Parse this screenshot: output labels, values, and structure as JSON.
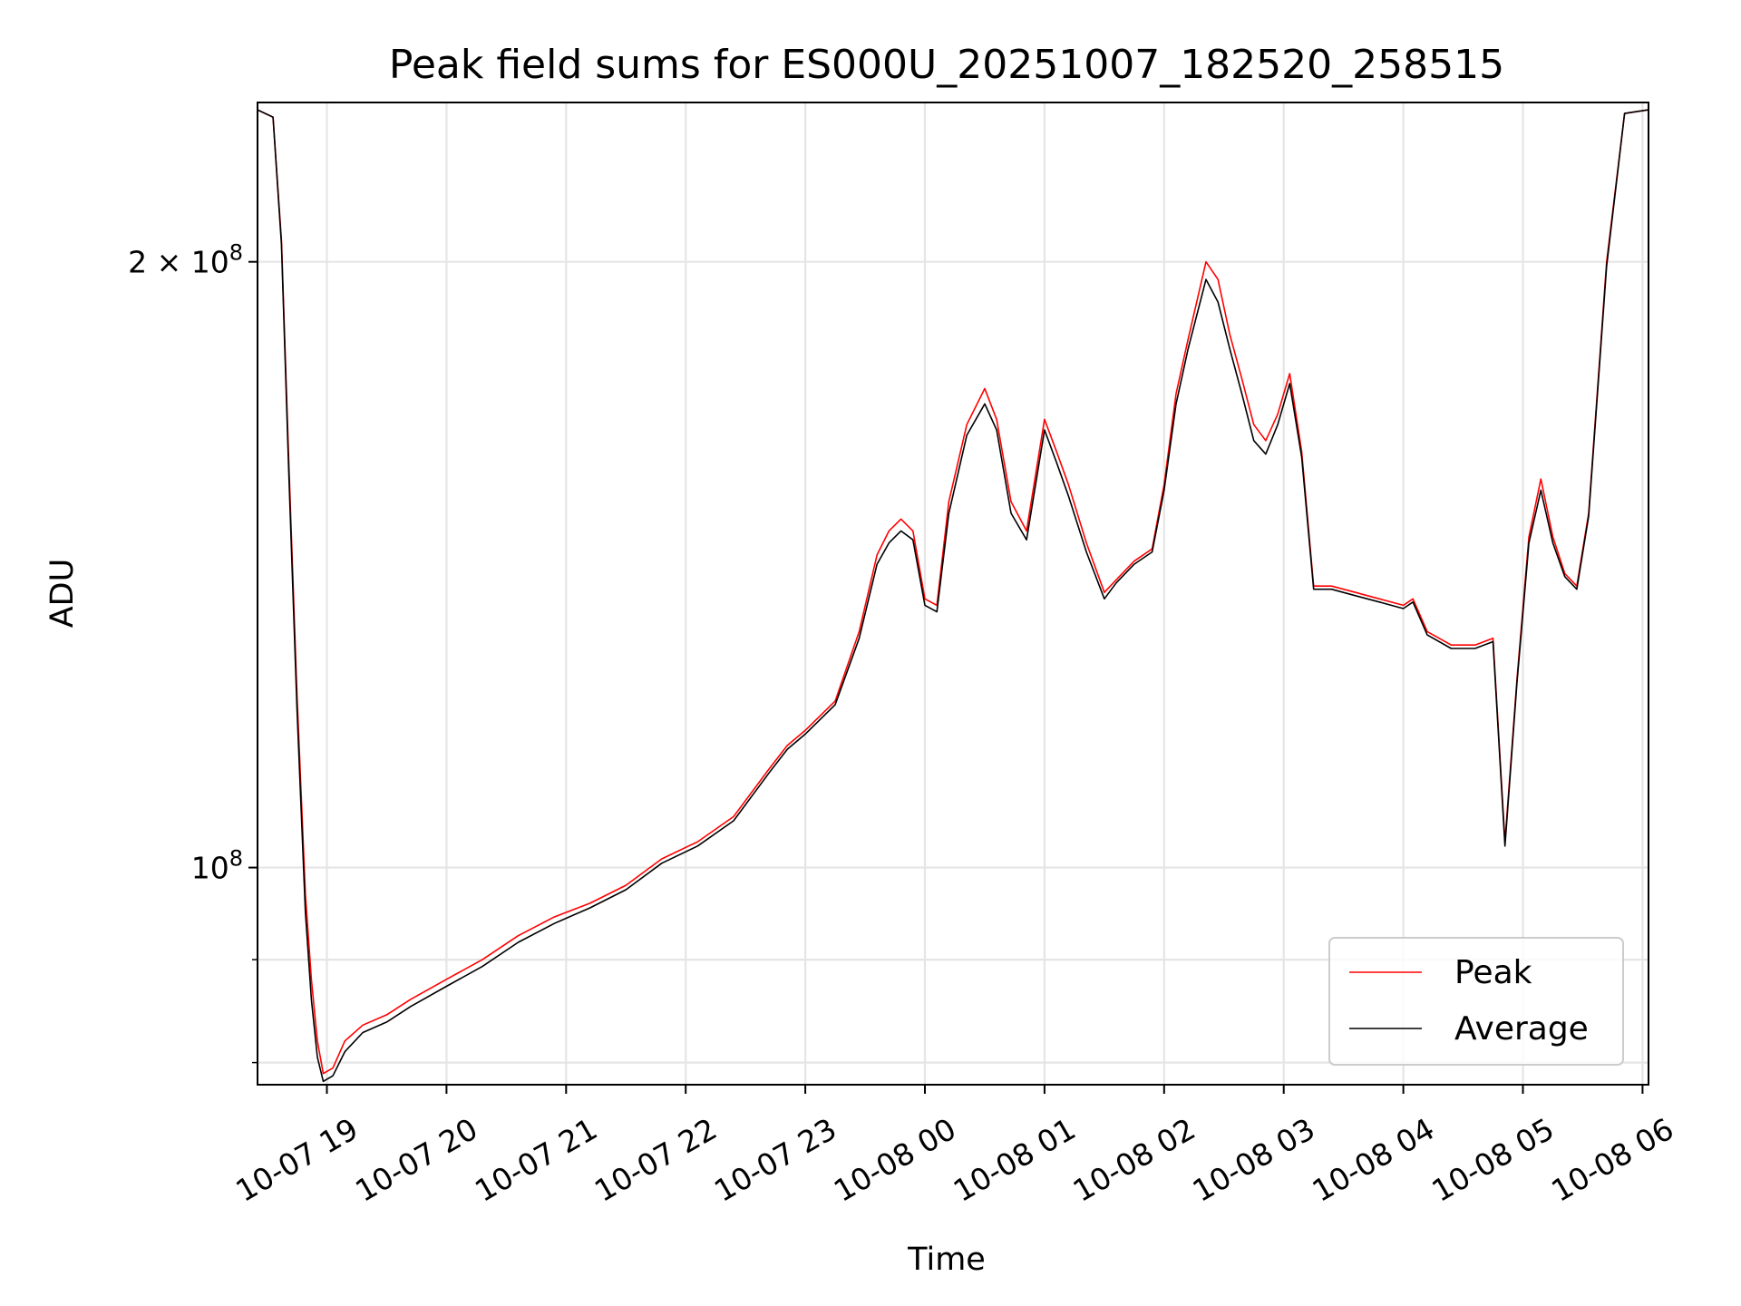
{
  "chart_data": {
    "type": "line",
    "title": "Peak field sums for ES000U_20251007_182520_258515",
    "xlabel": "Time",
    "ylabel": "ADU",
    "yscale": "log",
    "xlim_hours": [
      18.42,
      30.05
    ],
    "ylim": [
      78000000,
      240000000
    ],
    "x_ticks": [
      {
        "h": 19,
        "label": "10-07 19"
      },
      {
        "h": 20,
        "label": "10-07 20"
      },
      {
        "h": 21,
        "label": "10-07 21"
      },
      {
        "h": 22,
        "label": "10-07 22"
      },
      {
        "h": 23,
        "label": "10-07 23"
      },
      {
        "h": 24,
        "label": "10-08 00"
      },
      {
        "h": 25,
        "label": "10-08 01"
      },
      {
        "h": 26,
        "label": "10-08 02"
      },
      {
        "h": 27,
        "label": "10-08 03"
      },
      {
        "h": 28,
        "label": "10-08 04"
      },
      {
        "h": 29,
        "label": "10-08 05"
      },
      {
        "h": 30,
        "label": "10-08 06"
      }
    ],
    "y_major_ticks": [
      {
        "v": 100000000,
        "base": "10",
        "exp": "8"
      },
      {
        "v": 200000000,
        "base": "2 × 10",
        "exp": "8"
      }
    ],
    "y_minor_ticks": [
      80000000,
      90000000
    ],
    "grid": true,
    "legend_position": "lower-right",
    "series": [
      {
        "name": "Peak",
        "color": "#ff0000",
        "x": [
          18.42,
          18.55,
          18.62,
          18.68,
          18.75,
          18.82,
          18.87,
          18.92,
          18.97,
          19.05,
          19.15,
          19.3,
          19.5,
          19.7,
          20.0,
          20.3,
          20.6,
          20.9,
          21.2,
          21.5,
          21.8,
          22.1,
          22.4,
          22.7,
          22.85,
          23.0,
          23.25,
          23.45,
          23.6,
          23.7,
          23.8,
          23.9,
          24.0,
          24.1,
          24.2,
          24.35,
          24.5,
          24.6,
          24.72,
          24.85,
          25.0,
          25.1,
          25.2,
          25.35,
          25.5,
          25.6,
          25.75,
          25.9,
          26.0,
          26.1,
          26.2,
          26.35,
          26.45,
          26.55,
          26.65,
          26.75,
          26.85,
          26.95,
          27.05,
          27.15,
          27.25,
          27.4,
          27.6,
          27.8,
          28.0,
          28.08,
          28.2,
          28.4,
          28.6,
          28.75,
          28.85,
          28.95,
          29.05,
          29.15,
          29.25,
          29.35,
          29.45,
          29.55,
          29.7,
          29.85,
          30.05
        ],
        "values": [
          238000000,
          236000000,
          205000000,
          160000000,
          122000000,
          97000000,
          88000000,
          82000000,
          79000000,
          79500000,
          82000000,
          83500000,
          84500000,
          86000000,
          88000000,
          90000000,
          92500000,
          94500000,
          96000000,
          98000000,
          101000000,
          103000000,
          106000000,
          112000000,
          115000000,
          117000000,
          121000000,
          131000000,
          143000000,
          147000000,
          149000000,
          147000000,
          136000000,
          135000000,
          152000000,
          166000000,
          173000000,
          167000000,
          152000000,
          147000000,
          167000000,
          161000000,
          155000000,
          145000000,
          137000000,
          139000000,
          142000000,
          144000000,
          155000000,
          172000000,
          183000000,
          200000000,
          196000000,
          184000000,
          175000000,
          166000000,
          163000000,
          168000000,
          176000000,
          161000000,
          138000000,
          138000000,
          137000000,
          136000000,
          135000000,
          136000000,
          131000000,
          129000000,
          129000000,
          130000000,
          103000000,
          124000000,
          146000000,
          156000000,
          146000000,
          140000000,
          138000000,
          150000000,
          200000000,
          237000000,
          238000000
        ]
      },
      {
        "name": "Average",
        "color": "#000000",
        "x": [
          18.42,
          18.55,
          18.62,
          18.68,
          18.75,
          18.82,
          18.87,
          18.92,
          18.97,
          19.05,
          19.15,
          19.3,
          19.5,
          19.7,
          20.0,
          20.3,
          20.6,
          20.9,
          21.2,
          21.5,
          21.8,
          22.1,
          22.4,
          22.7,
          22.85,
          23.0,
          23.25,
          23.45,
          23.6,
          23.7,
          23.8,
          23.9,
          24.0,
          24.1,
          24.2,
          24.35,
          24.5,
          24.6,
          24.72,
          24.85,
          25.0,
          25.1,
          25.2,
          25.35,
          25.5,
          25.6,
          25.75,
          25.9,
          26.0,
          26.1,
          26.2,
          26.35,
          26.45,
          26.55,
          26.65,
          26.75,
          26.85,
          26.95,
          27.05,
          27.15,
          27.25,
          27.4,
          27.6,
          27.8,
          28.0,
          28.08,
          28.2,
          28.4,
          28.6,
          28.75,
          28.85,
          28.95,
          29.05,
          29.15,
          29.25,
          29.35,
          29.45,
          29.55,
          29.7,
          29.85,
          30.05
        ],
        "values": [
          238000000,
          236000000,
          204000000,
          158000000,
          120000000,
          95000000,
          86000000,
          80500000,
          78300000,
          78800000,
          81000000,
          82800000,
          83800000,
          85300000,
          87300000,
          89300000,
          91800000,
          93800000,
          95500000,
          97500000,
          100500000,
          102500000,
          105500000,
          111500000,
          114500000,
          116500000,
          120500000,
          130000000,
          141500000,
          145000000,
          147000000,
          145500000,
          135000000,
          134000000,
          150000000,
          164000000,
          170000000,
          165000000,
          150000000,
          145500000,
          165000000,
          159000000,
          153000000,
          143500000,
          136000000,
          138500000,
          141500000,
          143500000,
          154000000,
          170000000,
          181000000,
          196000000,
          191000000,
          181000000,
          172000000,
          163000000,
          160500000,
          166000000,
          174000000,
          160000000,
          137500000,
          137500000,
          136500000,
          135500000,
          134500000,
          135500000,
          130500000,
          128500000,
          128500000,
          129500000,
          102500000,
          123500000,
          145000000,
          154000000,
          145000000,
          139500000,
          137500000,
          149500000,
          199000000,
          237000000,
          238000000
        ]
      }
    ]
  }
}
